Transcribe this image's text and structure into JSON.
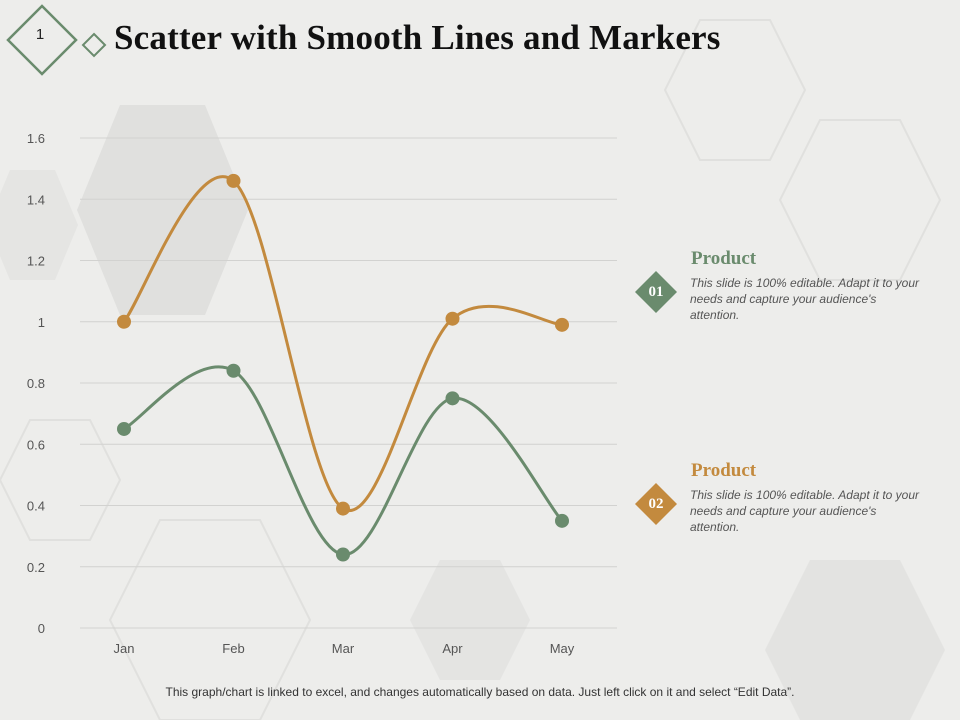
{
  "slide": {
    "number": "1"
  },
  "title": "Scatter with Smooth Lines and Markers",
  "colors": {
    "green": "#6a8b6d",
    "orange": "#c38a3e",
    "grid": "#d2d2d0",
    "axis_text": "#555555"
  },
  "chart_data": {
    "type": "line",
    "smooth": true,
    "markers": true,
    "title": "",
    "xlabel": "",
    "ylabel": "",
    "categories": [
      "Jan",
      "Feb",
      "Mar",
      "Apr",
      "May"
    ],
    "ylim": [
      0,
      1.6
    ],
    "yticks": [
      0,
      0.2,
      0.4,
      0.6,
      0.8,
      1,
      1.2,
      1.4,
      1.6
    ],
    "ytick_labels": [
      "0",
      "0.2",
      "0.4",
      "0.6",
      "0.8",
      "1",
      "1.2",
      "1.4",
      "1.6"
    ],
    "grid": true,
    "series": [
      {
        "name": "Product 01",
        "color": "#6a8b6d",
        "values": [
          0.65,
          0.84,
          0.24,
          0.75,
          0.35
        ]
      },
      {
        "name": "Product 02",
        "color": "#c38a3e",
        "values": [
          1.0,
          1.46,
          0.39,
          1.01,
          0.99
        ]
      }
    ]
  },
  "legend": [
    {
      "number": "01",
      "heading": "Product",
      "color": "#6a8b6d",
      "text": "This slide is 100% editable. Adapt it to your needs and capture your audience's attention."
    },
    {
      "number": "02",
      "heading": "Product",
      "color": "#c38a3e",
      "text": "This slide is 100% editable. Adapt it to your needs and capture your audience's attention."
    }
  ],
  "footer": "This graph/chart is linked to excel, and changes automatically based on data. Just left click on it and select “Edit Data”."
}
